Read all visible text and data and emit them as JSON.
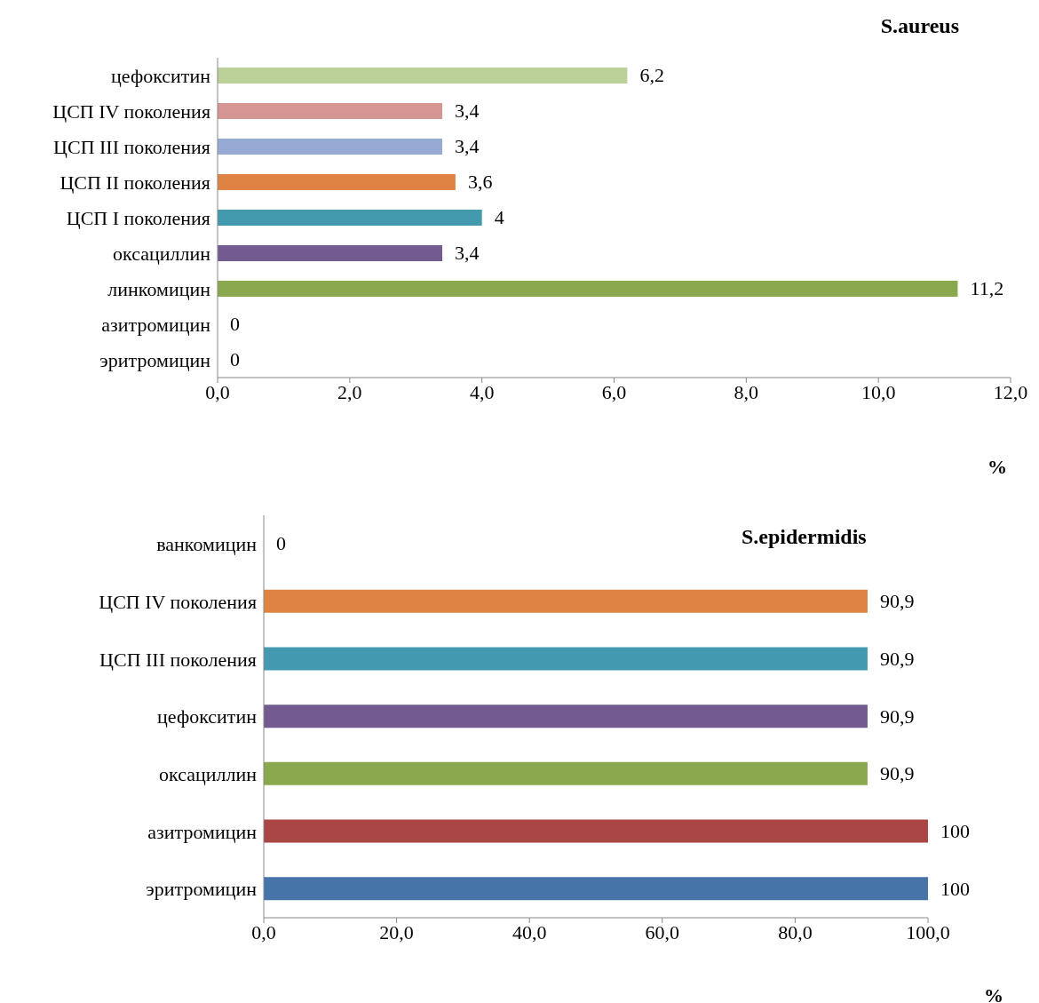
{
  "chart_data": [
    {
      "type": "bar",
      "orientation": "horizontal",
      "title": "S.aureus",
      "xlabel": "%",
      "categories": [
        "цефокситин",
        "ЦСП IV поколения",
        "ЦСП III поколения",
        "ЦСП II поколения",
        "ЦСП I поколения",
        "оксациллин",
        "линкомицин",
        "азитромицин",
        "эритромицин"
      ],
      "values": [
        6.2,
        3.4,
        3.4,
        3.6,
        4,
        3.4,
        11.2,
        0,
        0
      ],
      "colors": [
        "#bcd09a",
        "#d59593",
        "#95abd3",
        "#de8344",
        "#4399ad",
        "#735a8f",
        "#8aa94f",
        "#8aa94f",
        "#4674a9"
      ],
      "value_labels": [
        "6,2",
        "3,4",
        "3,4",
        "3,6",
        "4",
        "3,4",
        "11,2",
        "0",
        "0"
      ],
      "xlim": [
        0,
        12
      ],
      "xticks": [
        {
          "value": 0,
          "label": "0,0"
        },
        {
          "value": 2,
          "label": "2,0"
        },
        {
          "value": 4,
          "label": "4,0"
        },
        {
          "value": 6,
          "label": "6,0"
        },
        {
          "value": 8,
          "label": "8,0"
        },
        {
          "value": 10,
          "label": "10,0"
        },
        {
          "value": 12,
          "label": "12,0"
        }
      ],
      "grid": false,
      "legend": false
    },
    {
      "type": "bar",
      "orientation": "horizontal",
      "title": "S.epidermidis",
      "xlabel": "%",
      "categories": [
        "ванкомицин",
        "ЦСП IV поколения",
        "ЦСП III поколения",
        "цефокситин",
        "оксациллин",
        "азитромицин",
        "эритромицин"
      ],
      "values": [
        0,
        90.9,
        90.9,
        90.9,
        90.9,
        100,
        100
      ],
      "colors": [
        "#4674a9",
        "#de8341",
        "#4399af",
        "#735a8f",
        "#8aa94f",
        "#aa4745",
        "#4674a9"
      ],
      "value_labels": [
        "0",
        "90,9",
        "90,9",
        "90,9",
        "90,9",
        "100",
        "100"
      ],
      "xlim": [
        0,
        100
      ],
      "xticks": [
        {
          "value": 0,
          "label": "0,0"
        },
        {
          "value": 20,
          "label": "20,0"
        },
        {
          "value": 40,
          "label": "40,0"
        },
        {
          "value": 60,
          "label": "60,0"
        },
        {
          "value": 80,
          "label": "80,0"
        },
        {
          "value": 100,
          "label": "100,0"
        }
      ],
      "grid": false,
      "legend": false
    }
  ]
}
